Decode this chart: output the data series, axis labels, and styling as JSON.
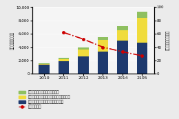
{
  "years": [
    "2010",
    "2011",
    "2012",
    "2013",
    "2014",
    "2105"
  ],
  "onpremise": [
    1350,
    1900,
    2600,
    3300,
    5000,
    4700
  ],
  "hosted": [
    100,
    300,
    1000,
    1800,
    1500,
    3700
  ],
  "community": [
    80,
    150,
    300,
    400,
    700,
    900
  ],
  "growth_rate": [
    null,
    62,
    52,
    40,
    33,
    27
  ],
  "bar_width": 0.55,
  "color_onpremise": "#1e3a6e",
  "color_hosted": "#f0dc3c",
  "color_community": "#8fc060",
  "color_growth": "#cc0000",
  "ylim_left": [
    0,
    10000
  ],
  "ylim_right": [
    0,
    100
  ],
  "yticks_left": [
    0,
    2000,
    4000,
    6000,
    8000,
    10000
  ],
  "yticks_right": [
    0,
    20,
    40,
    60,
    80,
    100
  ],
  "ylabel_left": "市場規模（億円）",
  "ylabel_right": "前年比成長率（％）",
  "legend_labels": [
    "コミュニティクラウドサービス",
    "ホステッドプライベートクラウドサービス",
    "オンプレミスプライベートクラウド",
    "前年比成長率"
  ],
  "background_color": "#ebebeb",
  "plot_bg_color": "#f5f5f5",
  "grid_color": "#ffffff",
  "figsize": [
    2.6,
    1.73
  ],
  "dpi": 100
}
